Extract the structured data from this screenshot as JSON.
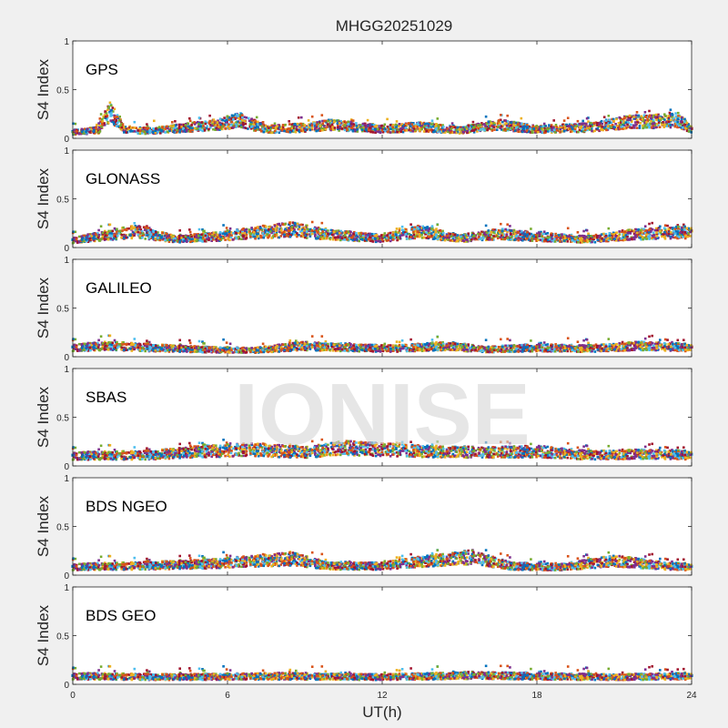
{
  "chart_data": {
    "type": "scatter",
    "title": "MHGG20251029",
    "xlabel": "UT(h)",
    "ylabel": "S4 Index",
    "xlim": [
      0,
      24
    ],
    "ylim": [
      0,
      1
    ],
    "xticks": [
      "0",
      "6",
      "12",
      "18",
      "24"
    ],
    "yticks": [
      "0",
      "0.5",
      "1"
    ],
    "grid": false,
    "watermark": "IONISE",
    "series_colors": [
      "#0072BD",
      "#D95319",
      "#EDB120",
      "#7E2F8E",
      "#77AC30",
      "#4DBEEE",
      "#A2142F"
    ],
    "panels": [
      {
        "name": "GPS",
        "points": [
          [
            0.0,
            0.07
          ],
          [
            1.0,
            0.09
          ],
          [
            1.2,
            0.22
          ],
          [
            1.5,
            0.28
          ],
          [
            2.0,
            0.1
          ],
          [
            3.0,
            0.08
          ],
          [
            4.5,
            0.12
          ],
          [
            5.5,
            0.15
          ],
          [
            6.5,
            0.2
          ],
          [
            7.5,
            0.1
          ],
          [
            9.0,
            0.12
          ],
          [
            10.0,
            0.15
          ],
          [
            12.0,
            0.1
          ],
          [
            13.5,
            0.13
          ],
          [
            15.0,
            0.09
          ],
          [
            16.5,
            0.15
          ],
          [
            18.0,
            0.1
          ],
          [
            20.0,
            0.12
          ],
          [
            21.5,
            0.18
          ],
          [
            23.5,
            0.2
          ],
          [
            24.0,
            0.1
          ]
        ]
      },
      {
        "name": "GLONASS",
        "points": [
          [
            0.0,
            0.08
          ],
          [
            1.0,
            0.12
          ],
          [
            2.5,
            0.18
          ],
          [
            4.0,
            0.09
          ],
          [
            5.5,
            0.12
          ],
          [
            7.0,
            0.16
          ],
          [
            8.5,
            0.2
          ],
          [
            10.0,
            0.14
          ],
          [
            12.0,
            0.1
          ],
          [
            13.5,
            0.18
          ],
          [
            15.0,
            0.1
          ],
          [
            16.5,
            0.15
          ],
          [
            18.0,
            0.12
          ],
          [
            20.0,
            0.09
          ],
          [
            21.5,
            0.14
          ],
          [
            23.0,
            0.16
          ],
          [
            24.0,
            0.17
          ]
        ]
      },
      {
        "name": "GALILEO",
        "points": [
          [
            0.0,
            0.1
          ],
          [
            1.5,
            0.12
          ],
          [
            3.0,
            0.1
          ],
          [
            5.0,
            0.08
          ],
          [
            7.0,
            0.07
          ],
          [
            9.0,
            0.12
          ],
          [
            10.5,
            0.1
          ],
          [
            12.5,
            0.09
          ],
          [
            14.5,
            0.12
          ],
          [
            16.0,
            0.08
          ],
          [
            18.0,
            0.1
          ],
          [
            20.0,
            0.09
          ],
          [
            22.0,
            0.12
          ],
          [
            24.0,
            0.1
          ]
        ]
      },
      {
        "name": "SBAS",
        "points": [
          [
            0.0,
            0.11
          ],
          [
            3.0,
            0.12
          ],
          [
            5.0,
            0.16
          ],
          [
            7.0,
            0.18
          ],
          [
            9.0,
            0.15
          ],
          [
            10.5,
            0.2
          ],
          [
            12.0,
            0.18
          ],
          [
            14.0,
            0.16
          ],
          [
            16.0,
            0.15
          ],
          [
            18.0,
            0.16
          ],
          [
            20.0,
            0.12
          ],
          [
            22.0,
            0.13
          ],
          [
            24.0,
            0.12
          ]
        ]
      },
      {
        "name": "BDS NGEO",
        "points": [
          [
            0.0,
            0.09
          ],
          [
            2.0,
            0.1
          ],
          [
            5.0,
            0.12
          ],
          [
            8.5,
            0.18
          ],
          [
            10.0,
            0.1
          ],
          [
            12.0,
            0.1
          ],
          [
            13.5,
            0.15
          ],
          [
            15.5,
            0.2
          ],
          [
            17.0,
            0.1
          ],
          [
            19.0,
            0.09
          ],
          [
            21.0,
            0.16
          ],
          [
            23.0,
            0.1
          ],
          [
            24.0,
            0.09
          ]
        ]
      },
      {
        "name": "BDS GEO",
        "points": [
          [
            0.0,
            0.09
          ],
          [
            4.0,
            0.08
          ],
          [
            8.0,
            0.09
          ],
          [
            12.0,
            0.08
          ],
          [
            15.5,
            0.1
          ],
          [
            18.0,
            0.09
          ],
          [
            21.0,
            0.08
          ],
          [
            24.0,
            0.09
          ]
        ]
      }
    ]
  }
}
